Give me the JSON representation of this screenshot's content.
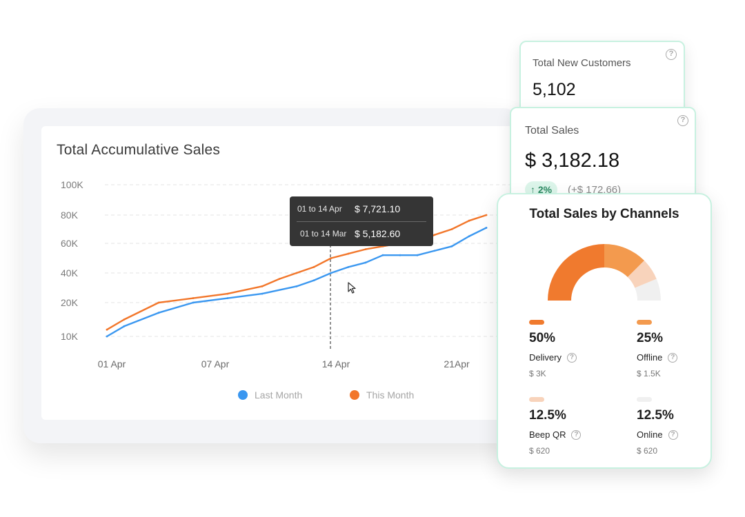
{
  "main": {
    "title": "Total Accumulative Sales"
  },
  "chart_data": {
    "type": "line",
    "title": "Total Accumulative Sales",
    "y_ticks": [
      "100K",
      "80K",
      "60K",
      "40K",
      "20K",
      "10K"
    ],
    "y_tick_values": [
      100000,
      80000,
      60000,
      40000,
      20000,
      10000
    ],
    "x_ticks": [
      "01 Apr",
      "07 Apr",
      "14 Apr",
      "21Apr"
    ],
    "x_tick_values": [
      1,
      7,
      14,
      21
    ],
    "ylim": [
      10000,
      100000
    ],
    "grid": "horizontal dashed",
    "legend_placement": "bottom-center",
    "series": [
      {
        "name": "Last Month",
        "color": "#3a97f0",
        "x": [
          1,
          2,
          4,
          6,
          8,
          10,
          12,
          13,
          14,
          15,
          16,
          17,
          18,
          19,
          20,
          21,
          22,
          23
        ],
        "y": [
          10000,
          13000,
          17000,
          20000,
          23000,
          26000,
          31000,
          35000,
          40000,
          44000,
          47000,
          52000,
          52000,
          52000,
          55000,
          58000,
          65000,
          71000
        ]
      },
      {
        "name": "This Month",
        "color": "#f2762a",
        "x": [
          1,
          2,
          4,
          6,
          8,
          10,
          11,
          12,
          13,
          14,
          15,
          16,
          17,
          18,
          19,
          20,
          21,
          22,
          23
        ],
        "y": [
          12000,
          15000,
          20000,
          23000,
          26000,
          31000,
          36000,
          40000,
          44000,
          50000,
          53000,
          56000,
          58000,
          60000,
          60000,
          66000,
          70000,
          76000,
          80000
        ]
      }
    ],
    "hover_x": 14,
    "tooltip": [
      {
        "label": "01 to 14 Apr",
        "value": "$ 7,721.10"
      },
      {
        "label": "01 to 14 Mar",
        "value": "$ 5,182.60"
      }
    ]
  },
  "legend": [
    {
      "label": "Last Month",
      "color": "#3a97f0"
    },
    {
      "label": "This Month",
      "color": "#f2762a"
    }
  ],
  "kpi_new_customers": {
    "label": "Total New Customers",
    "value": "5,102",
    "help": "?"
  },
  "kpi_total_sales": {
    "label": "Total Sales",
    "value": "$ 3,182.18",
    "change_pct": "↑ 2%",
    "change_abs": "(+$ 172.66)",
    "help": "?"
  },
  "channels": {
    "title": "Total Sales by Channels",
    "items": [
      {
        "pct": "50%",
        "name": "Delivery",
        "amount": "$ 3K",
        "color": "#f07a2e",
        "share": 0.5
      },
      {
        "pct": "25%",
        "name": "Offline",
        "amount": "$ 1.5K",
        "color": "#f39a4e",
        "share": 0.25
      },
      {
        "pct": "12.5%",
        "name": "Beep QR",
        "amount": "$ 620",
        "color": "#f8d3bb",
        "share": 0.125
      },
      {
        "pct": "12.5%",
        "name": "Online",
        "amount": "$ 620",
        "color": "#f0f0f0",
        "share": 0.125
      }
    ],
    "help": "?"
  }
}
